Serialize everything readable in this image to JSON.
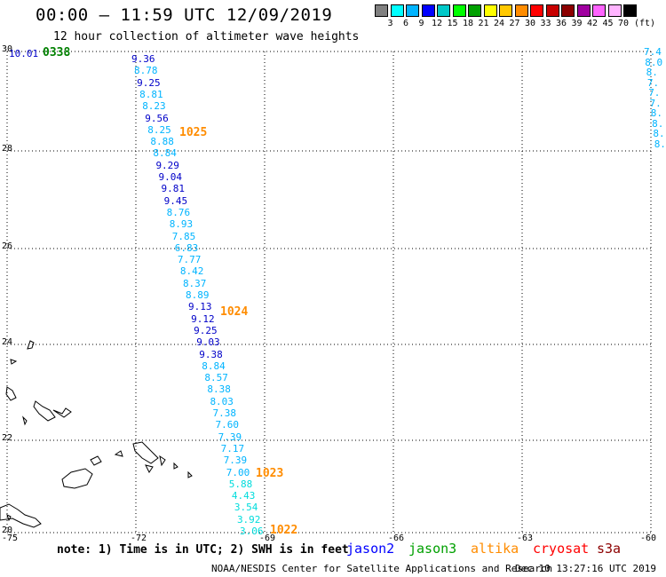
{
  "header": {
    "title": "00:00 – 11:59 UTC 12/09/2019",
    "subtitle": "12 hour collection of altimeter wave heights"
  },
  "legend": {
    "unit": "(ft)",
    "colors": [
      "#808080",
      "#00ffff",
      "#00b4ff",
      "#0000ff",
      "#00c8c8",
      "#00ff00",
      "#00a000",
      "#ffff00",
      "#ffc800",
      "#ff8c00",
      "#ff0000",
      "#c80000",
      "#8c0000",
      "#a000a0",
      "#ff64ff",
      "#ffb4ff",
      "#000000"
    ],
    "labels": [
      "3",
      "6",
      "9",
      "12",
      "15",
      "18",
      "21",
      "24",
      "27",
      "30",
      "33",
      "36",
      "39",
      "42",
      "45",
      "70"
    ]
  },
  "axes": {
    "lat_labels": [
      "30",
      "28",
      "26",
      "24",
      "22",
      "20"
    ],
    "lon_labels": [
      "-75",
      "-72",
      "-69",
      "-66",
      "-63",
      "-60"
    ]
  },
  "observations": {
    "track_left": [
      {
        "v": "9.36",
        "c": "#0000c8"
      },
      {
        "v": "8.78",
        "c": "#00b4ff"
      },
      {
        "v": "9.25",
        "c": "#0000c8"
      },
      {
        "v": "8.81",
        "c": "#00b4ff"
      },
      {
        "v": "8.23",
        "c": "#00b4ff"
      },
      {
        "v": "9.56",
        "c": "#0000c8"
      },
      {
        "v": "8.25",
        "c": "#00b4ff"
      },
      {
        "v": "8.88",
        "c": "#00b4ff"
      },
      {
        "v": "8.84",
        "c": "#00b4ff"
      },
      {
        "v": "9.29",
        "c": "#0000c8"
      },
      {
        "v": "9.04",
        "c": "#0000c8"
      },
      {
        "v": "9.81",
        "c": "#0000c8"
      },
      {
        "v": "9.45",
        "c": "#0000c8"
      },
      {
        "v": "8.76",
        "c": "#00b4ff"
      },
      {
        "v": "8.93",
        "c": "#00b4ff"
      },
      {
        "v": "7.85",
        "c": "#00b4ff"
      },
      {
        "v": "6.83",
        "c": "#00b4ff"
      },
      {
        "v": "7.77",
        "c": "#00b4ff"
      },
      {
        "v": "8.42",
        "c": "#00b4ff"
      },
      {
        "v": "8.37",
        "c": "#00b4ff"
      },
      {
        "v": "8.89",
        "c": "#00b4ff"
      },
      {
        "v": "9.13",
        "c": "#0000c8"
      },
      {
        "v": "9.12",
        "c": "#0000c8"
      },
      {
        "v": "9.25",
        "c": "#0000c8"
      },
      {
        "v": "9.03",
        "c": "#0000c8"
      },
      {
        "v": "9.38",
        "c": "#0000c8"
      },
      {
        "v": "8.84",
        "c": "#00b4ff"
      },
      {
        "v": "8.57",
        "c": "#00b4ff"
      },
      {
        "v": "8.38",
        "c": "#00b4ff"
      },
      {
        "v": "8.03",
        "c": "#00b4ff"
      },
      {
        "v": "7.38",
        "c": "#00b4ff"
      },
      {
        "v": "7.60",
        "c": "#00b4ff"
      },
      {
        "v": "7.39",
        "c": "#00b4ff"
      },
      {
        "v": "7.17",
        "c": "#00b4ff"
      },
      {
        "v": "7.39",
        "c": "#00b4ff"
      },
      {
        "v": "7.00",
        "c": "#00b4ff"
      },
      {
        "v": "5.88",
        "c": "#00dcdc"
      },
      {
        "v": "4.43",
        "c": "#00dcdc"
      },
      {
        "v": "3.54",
        "c": "#00dcdc"
      },
      {
        "v": "3.92",
        "c": "#00dcdc"
      },
      {
        "v": "3.06",
        "c": "#00dcdc"
      }
    ],
    "track_right_partial": [
      "7.4",
      "8.0",
      "8.",
      "7.",
      "7.",
      "7.",
      "8.",
      "8.",
      "8.",
      "8."
    ],
    "corner_value": "10.01",
    "times": [
      {
        "t": "0338",
        "c": "#008000"
      },
      {
        "t": "1025",
        "c": "#ff8c00"
      },
      {
        "t": "1024",
        "c": "#ff8c00"
      },
      {
        "t": "1023",
        "c": "#ff8c00"
      },
      {
        "t": "1022",
        "c": "#ff8c00"
      }
    ]
  },
  "footer": {
    "note": "note: 1) Time is in UTC; 2) SWH is in feet",
    "satellites": [
      {
        "name": "jason2",
        "color": "#0000ff"
      },
      {
        "name": "jason3",
        "color": "#00a000"
      },
      {
        "name": "altika",
        "color": "#ff8c00"
      },
      {
        "name": "cryosat",
        "color": "#ff0000"
      },
      {
        "name": "s3a",
        "color": "#8c0000"
      }
    ],
    "credit": "NOAA/NESDIS Center for Satellite Applications and Research",
    "timestamp": "Dec 10 13:27:16 UTC 2019"
  }
}
